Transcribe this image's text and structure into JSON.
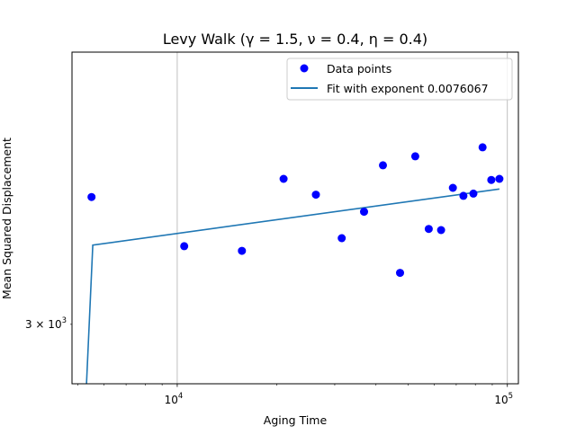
{
  "chart_data": {
    "type": "scatter",
    "title": "Levy Walk (γ = 1.5, ν =  0.4, η =  0.4)",
    "xlabel": "Aging Time",
    "ylabel": "Mean Squared Displacement",
    "xscale": "log",
    "yscale": "log",
    "xlim": [
      4800,
      108000
    ],
    "ylim": [
      2950,
      3240
    ],
    "grid": "x-major",
    "legend_position": "top-right",
    "x_ticks": [
      {
        "value": 10000,
        "label": "10",
        "exp": "4"
      },
      {
        "value": 100000,
        "label": "10",
        "exp": "5"
      }
    ],
    "y_ticks": [
      {
        "value": 3000,
        "label": "3 × 10",
        "exp": "3"
      }
    ],
    "series": [
      {
        "name": "Data points",
        "kind": "markers",
        "color": "#0000ff",
        "x": [
          5500,
          10500,
          15700,
          21000,
          26300,
          31500,
          36800,
          42000,
          47300,
          52600,
          57800,
          63000,
          68400,
          73600,
          78900,
          84100,
          89400,
          94600
        ],
        "y": [
          3110,
          3067,
          3063,
          3126,
          3112,
          3074,
          3097,
          3138,
          3044,
          3146,
          3082,
          3081,
          3118,
          3111,
          3113,
          3154,
          3125,
          3126
        ]
      },
      {
        "name": "Fit with exponent 0.0076067",
        "kind": "line",
        "color": "#1f77b4",
        "x": [
          5250,
          5550,
          94600
        ],
        "y": [
          2920,
          3068,
          3117
        ]
      }
    ]
  }
}
